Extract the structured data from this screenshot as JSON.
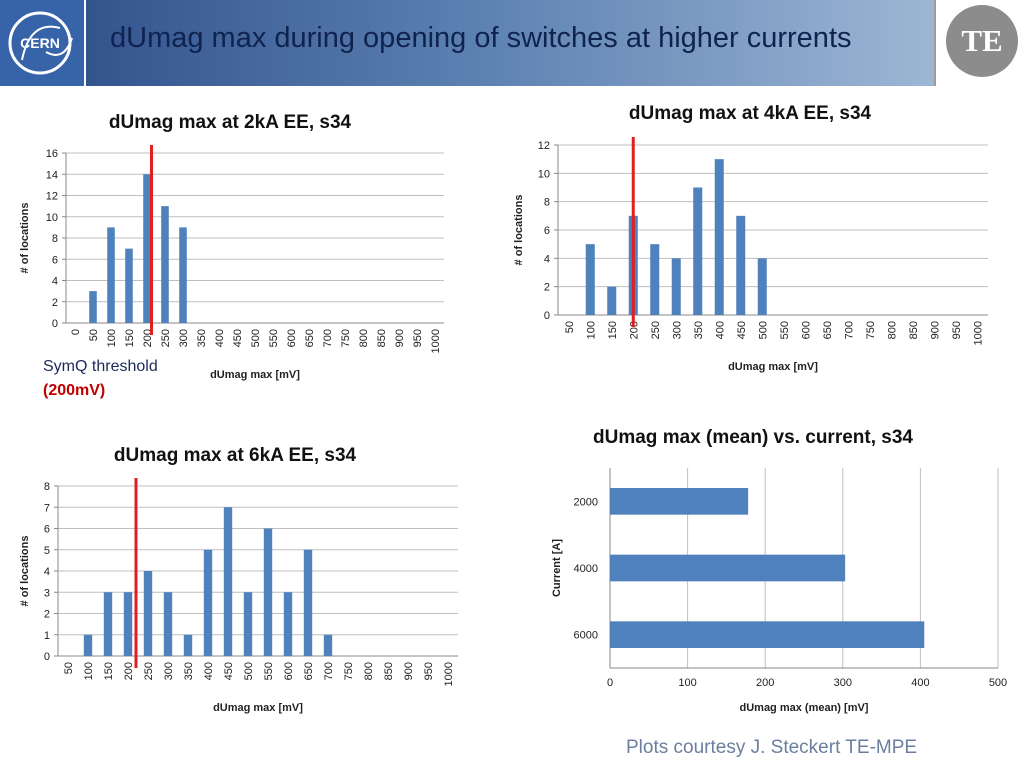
{
  "slide": {
    "title": "dUmag max during opening of switches at higher currents",
    "logo_text": "CERN",
    "te_badge": "TE",
    "threshold_note": "SymQ threshold",
    "threshold_value_open": "(",
    "threshold_value": "200mV",
    "threshold_value_close": ")",
    "footer": "Plots courtesy  J. Steckert TE-MPE"
  },
  "colors": {
    "bar": "#4f81bd",
    "threshold_line": "#e02020",
    "grid": "#bfbfbf"
  },
  "chart_data": [
    {
      "type": "bar",
      "title": "dUmag max at 2kA EE, s34",
      "xlabel": "dUmag max [mV]",
      "ylabel": "# of locations",
      "categories": [
        "0",
        "50",
        "100",
        "150",
        "200",
        "250",
        "300",
        "350",
        "400",
        "450",
        "500",
        "550",
        "600",
        "650",
        "700",
        "750",
        "800",
        "850",
        "900",
        "950",
        "1000"
      ],
      "values": [
        0,
        3,
        9,
        7,
        14,
        11,
        9,
        0,
        0,
        0,
        0,
        0,
        0,
        0,
        0,
        0,
        0,
        0,
        0,
        0,
        0
      ],
      "ylim": [
        0,
        16
      ],
      "yticks": [
        0,
        2,
        4,
        6,
        8,
        10,
        12,
        14,
        16
      ],
      "grid": true,
      "threshold_at": 4.75
    },
    {
      "type": "bar",
      "title": "dUmag max at 4kA EE, s34",
      "xlabel": "dUmag max [mV]",
      "ylabel": "# of locations",
      "categories": [
        "50",
        "100",
        "150",
        "200",
        "250",
        "300",
        "350",
        "400",
        "450",
        "500",
        "550",
        "600",
        "650",
        "700",
        "750",
        "800",
        "850",
        "900",
        "950",
        "1000"
      ],
      "values": [
        0,
        5,
        2,
        7,
        5,
        4,
        9,
        11,
        7,
        4,
        0,
        0,
        0,
        0,
        0,
        0,
        0,
        0,
        0,
        0
      ],
      "ylim": [
        0,
        12
      ],
      "yticks": [
        0,
        2,
        4,
        6,
        8,
        10,
        12
      ],
      "grid": true,
      "threshold_at": 3.5
    },
    {
      "type": "bar",
      "title": "dUmag max at 6kA EE, s34",
      "xlabel": "dUmag max [mV]",
      "ylabel": "# of locations",
      "categories": [
        "50",
        "100",
        "150",
        "200",
        "250",
        "300",
        "350",
        "400",
        "450",
        "500",
        "550",
        "600",
        "650",
        "700",
        "750",
        "800",
        "850",
        "900",
        "950",
        "1000"
      ],
      "values": [
        0,
        1,
        3,
        3,
        4,
        3,
        1,
        5,
        7,
        3,
        6,
        3,
        5,
        1,
        0,
        0,
        0,
        0,
        0,
        0
      ],
      "ylim": [
        0,
        8
      ],
      "yticks": [
        0,
        1,
        2,
        3,
        4,
        5,
        6,
        7,
        8
      ],
      "grid": true,
      "threshold_at": 3.9
    },
    {
      "type": "bar",
      "orientation": "horizontal",
      "title": "dUmag max (mean) vs. current, s34",
      "xlabel": "dUmag max (mean) [mV]",
      "ylabel": "Current [A]",
      "categories": [
        "2000",
        "4000",
        "6000"
      ],
      "values": [
        178,
        303,
        405
      ],
      "xlim": [
        0,
        500
      ],
      "xticks": [
        0,
        100,
        200,
        300,
        400,
        500
      ],
      "grid": true
    }
  ]
}
